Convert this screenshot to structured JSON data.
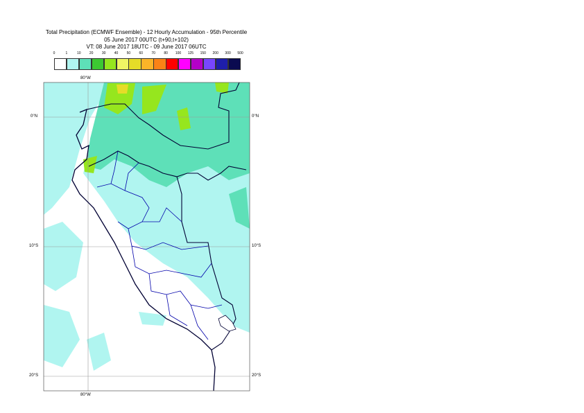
{
  "title": {
    "line1": "Total Precipitation (ECMWF Ensemble) - 12 Hourly Accumulation - 95th Percentile",
    "line2": "05 June 2017 00UTC (t+90,t+102)",
    "line3": "VT: 08 June 2017 18UTC - 09 June 2017 06UTC"
  },
  "legend": {
    "labels": [
      "0",
      "1",
      "10",
      "20",
      "30",
      "40",
      "50",
      "60",
      "70",
      "80",
      "100",
      "125",
      "150",
      "200",
      "300",
      "500"
    ],
    "colors": [
      "#ffffff",
      "#b0f5f0",
      "#5ee0b8",
      "#3cc832",
      "#96e61e",
      "#f0f564",
      "#e6dc28",
      "#fab428",
      "#fa8216",
      "#ff0000",
      "#ff00ff",
      "#b400c8",
      "#7846ff",
      "#1e1eaa",
      "#0a0a50"
    ]
  },
  "axes": {
    "lon_labels": [
      "80°W"
    ],
    "lat_labels": [
      "0°N",
      "10°S",
      "20°S"
    ]
  },
  "colors": {
    "ocean_light": "#b0f5f0",
    "rain_10": "#5ee0b8",
    "rain_20": "#96e61e",
    "rain_30": "#e6dc28",
    "grid": "#999999",
    "coast": "#000033",
    "admin": "#0000aa"
  }
}
